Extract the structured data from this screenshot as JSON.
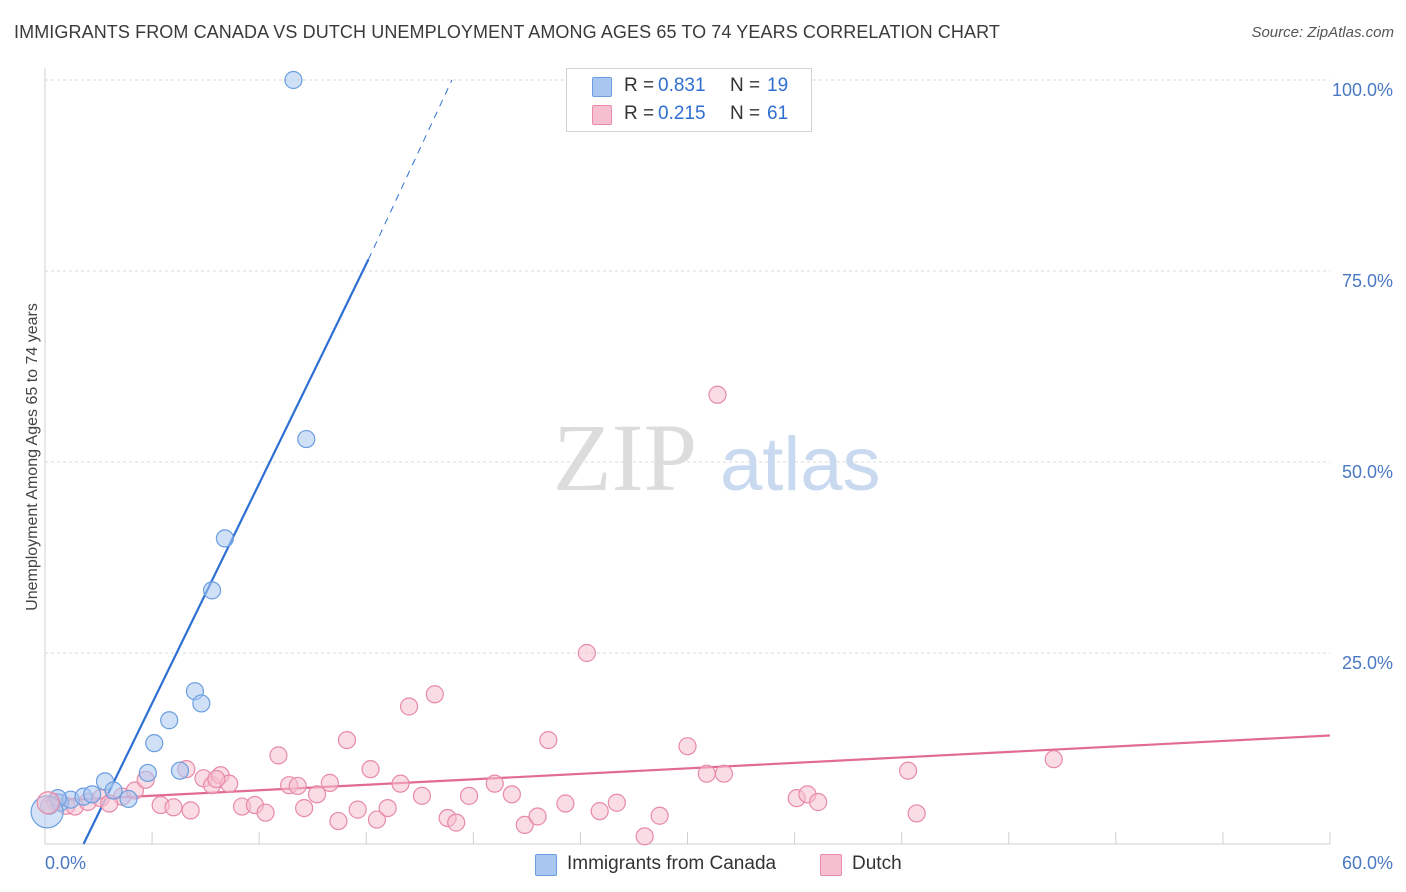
{
  "title": "IMMIGRANTS FROM CANADA VS DUTCH UNEMPLOYMENT AMONG AGES 65 TO 74 YEARS CORRELATION CHART",
  "source": "Source: ZipAtlas.com",
  "watermark": {
    "zip": "ZIP",
    "atlas": "atlas"
  },
  "colors": {
    "blue": "#a9c6f0",
    "blue_stroke": "#6a9ee0",
    "blue_line": "#2d6fd2",
    "pink": "#f6bfd0",
    "pink_stroke": "#e88aa8",
    "pink_line": "#e26b93",
    "grid": "#d9d9d9",
    "tick_text": "#4a78c2"
  },
  "legend": {
    "rows": [
      {
        "r_label": "R =",
        "r_value": "0.831",
        "n_label": "N =",
        "n_value": "19",
        "color": "#a9c6f0"
      },
      {
        "r_label": "R =",
        "r_value": "0.215",
        "n_label": "N =",
        "n_value": "61",
        "color": "#f6bfd0"
      }
    ]
  },
  "bottom_legend": [
    {
      "label": "Immigrants from Canada",
      "color": "#a9c6f0"
    },
    {
      "label": "Dutch",
      "color": "#f6bfd0"
    }
  ],
  "chart_data": {
    "type": "scatter",
    "title": "IMMIGRANTS FROM CANADA VS DUTCH UNEMPLOYMENT AMONG AGES 65 TO 74 YEARS CORRELATION CHART",
    "xlabel": "",
    "ylabel": "Unemployment Among Ages 65 to 74 years",
    "xlim": [
      0,
      60
    ],
    "ylim": [
      0,
      100
    ],
    "x_tick_labels": [
      "0.0%",
      "60.0%"
    ],
    "y_ticks": [
      25,
      50,
      75,
      100
    ],
    "y_tick_labels": [
      "25.0%",
      "50.0%",
      "75.0%",
      "100.0%"
    ],
    "grid": true,
    "series": [
      {
        "name": "Immigrants from Canada",
        "points": [
          [
            0.2,
            5.0
          ],
          [
            0.7,
            5.4
          ],
          [
            1.2,
            5.8
          ],
          [
            1.8,
            6.2
          ],
          [
            2.8,
            8.2
          ],
          [
            3.2,
            7.0
          ],
          [
            3.9,
            5.9
          ],
          [
            4.8,
            9.3
          ],
          [
            5.1,
            13.2
          ],
          [
            5.8,
            16.2
          ],
          [
            6.3,
            9.6
          ],
          [
            7.0,
            20.0
          ],
          [
            7.3,
            18.4
          ],
          [
            8.4,
            40.0
          ],
          [
            7.8,
            33.2
          ],
          [
            12.2,
            53.0
          ],
          [
            11.6,
            100.0
          ],
          [
            0.6,
            6.0
          ],
          [
            2.2,
            6.5
          ]
        ],
        "trend": {
          "x0": 1.8,
          "y0": 0,
          "x1": 15.1,
          "y1": 76.5,
          "dash_to_x": 19.0,
          "dash_to_y": 100
        }
      },
      {
        "name": "Dutch",
        "points": [
          [
            0.5,
            5.5
          ],
          [
            1.0,
            5.0
          ],
          [
            1.4,
            4.9
          ],
          [
            2.0,
            5.5
          ],
          [
            2.6,
            6.0
          ],
          [
            3.6,
            6.2
          ],
          [
            4.2,
            7.0
          ],
          [
            4.7,
            8.4
          ],
          [
            5.4,
            5.1
          ],
          [
            6.0,
            4.8
          ],
          [
            6.6,
            9.8
          ],
          [
            6.8,
            4.4
          ],
          [
            7.4,
            8.6
          ],
          [
            7.8,
            7.7
          ],
          [
            8.2,
            9.0
          ],
          [
            8.6,
            7.9
          ],
          [
            9.2,
            4.9
          ],
          [
            9.8,
            5.1
          ],
          [
            10.3,
            4.1
          ],
          [
            10.9,
            11.6
          ],
          [
            11.4,
            7.7
          ],
          [
            11.8,
            7.6
          ],
          [
            12.1,
            4.7
          ],
          [
            12.7,
            6.5
          ],
          [
            13.3,
            8.0
          ],
          [
            13.7,
            3.0
          ],
          [
            14.1,
            13.6
          ],
          [
            14.6,
            4.5
          ],
          [
            15.2,
            9.8
          ],
          [
            15.5,
            3.2
          ],
          [
            16.0,
            4.7
          ],
          [
            16.6,
            7.9
          ],
          [
            17.0,
            18.0
          ],
          [
            17.6,
            6.3
          ],
          [
            18.2,
            19.6
          ],
          [
            18.8,
            3.4
          ],
          [
            19.2,
            2.8
          ],
          [
            19.8,
            6.3
          ],
          [
            21.0,
            7.9
          ],
          [
            21.8,
            6.5
          ],
          [
            22.4,
            2.5
          ],
          [
            23.0,
            3.6
          ],
          [
            23.5,
            13.6
          ],
          [
            24.3,
            5.3
          ],
          [
            25.3,
            25.0
          ],
          [
            25.9,
            4.3
          ],
          [
            26.7,
            5.4
          ],
          [
            28.0,
            1.0
          ],
          [
            28.7,
            3.7
          ],
          [
            30.0,
            12.8
          ],
          [
            30.9,
            9.2
          ],
          [
            31.7,
            9.2
          ],
          [
            35.1,
            6.0
          ],
          [
            35.6,
            6.5
          ],
          [
            36.1,
            5.5
          ],
          [
            40.3,
            9.6
          ],
          [
            40.7,
            4.0
          ],
          [
            47.1,
            11.1
          ],
          [
            31.4,
            58.8
          ],
          [
            8.0,
            8.5
          ],
          [
            3.0,
            5.3
          ]
        ],
        "trend": {
          "x0": 0,
          "y0": 5.6,
          "x1": 60,
          "y1": 14.2
        }
      }
    ]
  }
}
